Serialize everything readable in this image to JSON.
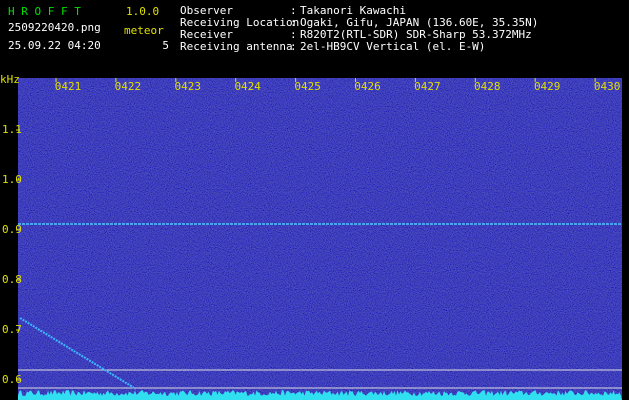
{
  "header": {
    "app_name": "H R O F F T",
    "version": "1.0.0",
    "filename": "2509220420.png",
    "datetime": "25.09.22 04:20",
    "meteor_label": "meteor",
    "meteor_count": "5"
  },
  "info": {
    "separator": ":",
    "rows": [
      {
        "label": "Observer",
        "value": "Takanori Kawachi"
      },
      {
        "label": "Receiving Location",
        "value": "Ogaki, Gifu, JAPAN (136.60E, 35.35N)"
      },
      {
        "label": "Receiver",
        "value": "R820T2(RTL-SDR) SDR-Sharp 53.372MHz"
      },
      {
        "label": "Receiving antenna",
        "value": "2el-HB9CV Vertical (el. E-W)"
      }
    ]
  },
  "plot": {
    "unit": "kHz",
    "time_labels": [
      "0421",
      "0422",
      "0423",
      "0424",
      "0425",
      "0426",
      "0427",
      "0428",
      "0429",
      "0430"
    ],
    "freq_labels": [
      "1.1",
      "1.0",
      "0.9",
      "0.8",
      "0.7",
      "0.6"
    ]
  }
}
